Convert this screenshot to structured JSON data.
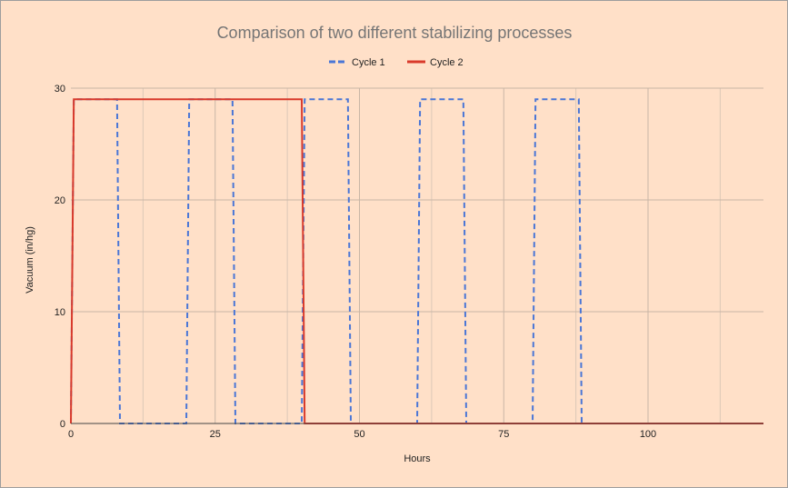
{
  "chart_data": {
    "type": "line",
    "title": "Comparison of two different stabilizing processes",
    "xlabel": "Hours",
    "ylabel": "Vacuum (in/hg)",
    "xlim": [
      0,
      120
    ],
    "ylim": [
      0,
      30
    ],
    "x_ticks": [
      "0",
      "25",
      "50",
      "75",
      "100"
    ],
    "y_ticks": [
      "0",
      "10",
      "20",
      "30"
    ],
    "grid": true,
    "legend_position": "top",
    "background": "#ffe0c8",
    "series": [
      {
        "name": "Cycle 1",
        "color": "#4a76d6",
        "style": "dashed",
        "x": [
          0,
          0.5,
          8,
          8.5,
          20,
          20.5,
          28,
          28.5,
          40,
          40.5,
          48,
          48.5,
          60,
          60.5,
          68,
          68.5,
          80,
          80.5,
          88,
          88.5,
          120
        ],
        "y": [
          0,
          29,
          29,
          0,
          0,
          29,
          29,
          0,
          0,
          29,
          29,
          0,
          0,
          29,
          29,
          0,
          0,
          29,
          29,
          0,
          0
        ]
      },
      {
        "name": "Cycle 2",
        "color": "#d93a2b",
        "style": "solid",
        "x": [
          0,
          0.5,
          40,
          40.5,
          120
        ],
        "y": [
          0,
          29,
          29,
          0,
          0
        ]
      }
    ]
  }
}
